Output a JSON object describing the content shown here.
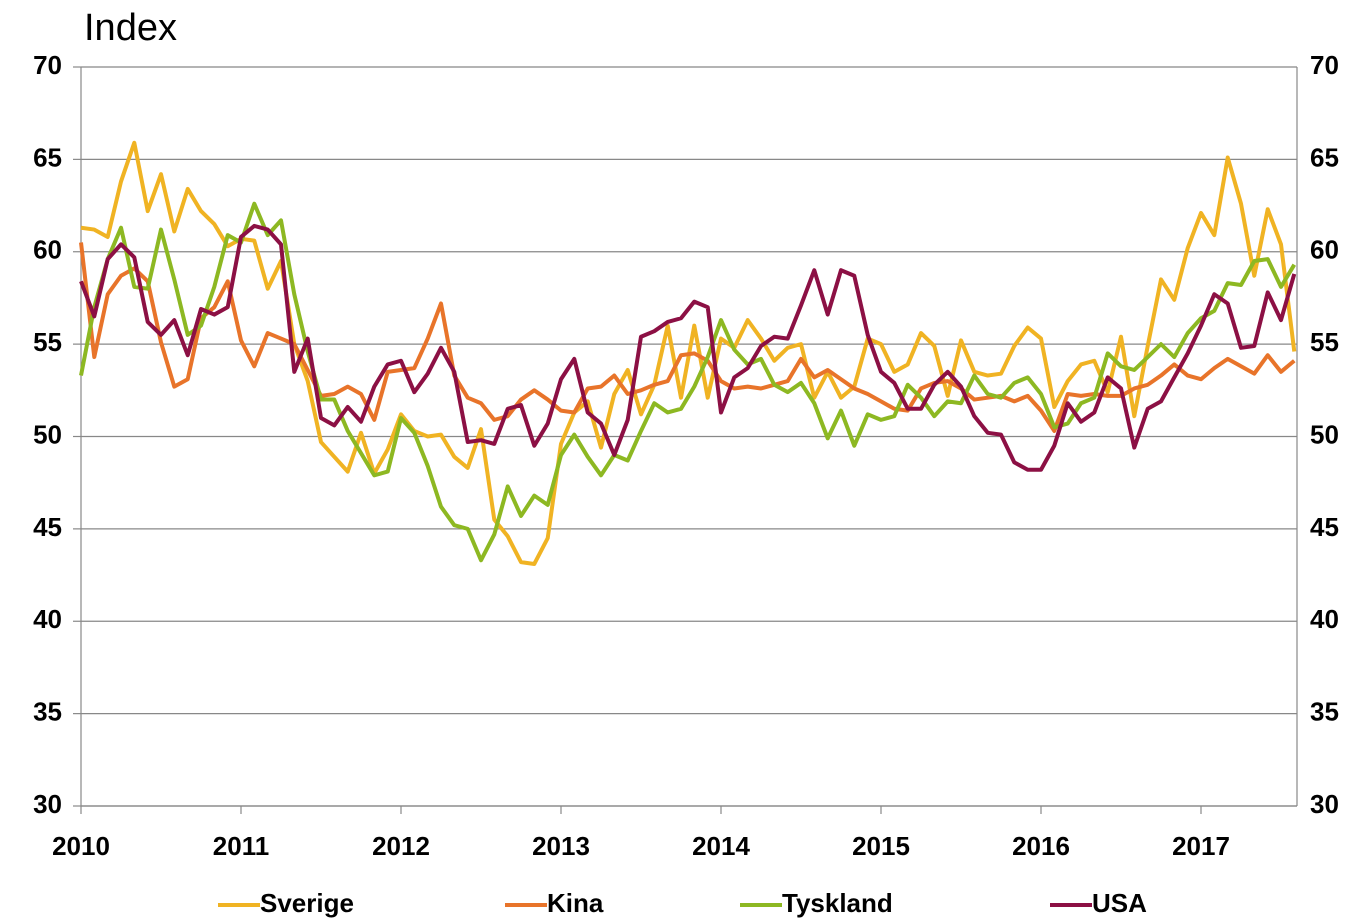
{
  "chart_data": {
    "type": "line",
    "title": "Index",
    "x": [
      2010,
      2010.083,
      2010.167,
      2010.25,
      2010.333,
      2010.417,
      2010.5,
      2010.583,
      2010.667,
      2010.75,
      2010.833,
      2010.917,
      2011,
      2011.083,
      2011.167,
      2011.25,
      2011.333,
      2011.417,
      2011.5,
      2011.583,
      2011.667,
      2011.75,
      2011.833,
      2011.917,
      2012,
      2012.083,
      2012.167,
      2012.25,
      2012.333,
      2012.417,
      2012.5,
      2012.583,
      2012.667,
      2012.75,
      2012.833,
      2012.917,
      2013,
      2013.083,
      2013.167,
      2013.25,
      2013.333,
      2013.417,
      2013.5,
      2013.583,
      2013.667,
      2013.75,
      2013.833,
      2013.917,
      2014,
      2014.083,
      2014.167,
      2014.25,
      2014.333,
      2014.417,
      2014.5,
      2014.583,
      2014.667,
      2014.75,
      2014.833,
      2014.917,
      2015,
      2015.083,
      2015.167,
      2015.25,
      2015.333,
      2015.417,
      2015.5,
      2015.583,
      2015.667,
      2015.75,
      2015.833,
      2015.917,
      2016,
      2016.083,
      2016.167,
      2016.25,
      2016.333,
      2016.417,
      2016.5,
      2016.583,
      2016.667,
      2016.75,
      2016.833,
      2016.917,
      2017,
      2017.083,
      2017.167,
      2017.25,
      2017.333,
      2017.417,
      2017.5,
      2017.583
    ],
    "series": [
      {
        "name": "Sverige",
        "color": "#f0b323",
        "values": [
          61.3,
          61.2,
          60.8,
          63.8,
          65.9,
          62.2,
          64.2,
          61.1,
          63.4,
          62.2,
          61.5,
          60.3,
          60.7,
          60.6,
          58,
          59.5,
          55,
          53,
          49.7,
          48.9,
          48.1,
          50.2,
          48,
          49.3,
          51.2,
          50.3,
          50,
          50.1,
          48.9,
          48.3,
          50.4,
          45.5,
          44.6,
          43.2,
          43.1,
          44.5,
          49.6,
          51.3,
          51.9,
          49.4,
          52.3,
          53.6,
          51.2,
          52.8,
          56,
          52.1,
          56,
          52.1,
          55.3,
          54.8,
          56.3,
          55.3,
          54.1,
          54.8,
          55,
          52.1,
          53.5,
          52.1,
          52.7,
          55.3,
          55,
          53.5,
          53.9,
          55.6,
          54.9,
          52.2,
          55.2,
          53.5,
          53.3,
          53.4,
          54.9,
          55.9,
          55.3,
          51.6,
          53,
          53.9,
          54.1,
          52.4,
          55.4,
          51.1,
          54.9,
          58.5,
          57.4,
          60.2,
          62.1,
          60.9,
          65.1,
          62.6,
          58.7,
          62.3,
          60.4,
          54.6
        ]
      },
      {
        "name": "Kina",
        "color": "#e8742a",
        "values": [
          60.5,
          54.3,
          57.7,
          58.7,
          59.1,
          58.4,
          55.1,
          52.7,
          53.1,
          56.4,
          57,
          58.4,
          55.2,
          53.8,
          55.6,
          55.3,
          55,
          53.6,
          52.2,
          52.3,
          52.7,
          52.3,
          50.9,
          53.5,
          53.6,
          53.7,
          55.3,
          57.2,
          53.3,
          52.1,
          51.8,
          50.9,
          51.1,
          52,
          52.5,
          52,
          51.4,
          51.3,
          52.6,
          52.7,
          53.3,
          52.3,
          52.5,
          52.8,
          53,
          54.4,
          54.5,
          54.1,
          53,
          52.6,
          52.7,
          52.6,
          52.8,
          53,
          54.2,
          53.2,
          53.6,
          53.1,
          52.6,
          52.3,
          51.9,
          51.5,
          51.4,
          52.6,
          52.9,
          53,
          52.6,
          52,
          52.1,
          52.2,
          51.9,
          52.2,
          51.4,
          50.3,
          52.3,
          52.2,
          52.3,
          52.2,
          52.2,
          52.6,
          52.8,
          53.3,
          53.9,
          53.3,
          53.1,
          53.7,
          54.2,
          53.8,
          53.4,
          54.4,
          53.5,
          54.1
        ]
      },
      {
        "name": "Tyskland",
        "color": "#8db822",
        "values": [
          53.3,
          57,
          59.6,
          61.3,
          58.1,
          58,
          61.2,
          58.5,
          55.5,
          56,
          58.1,
          60.9,
          60.5,
          62.6,
          60.9,
          61.7,
          57.7,
          54.6,
          52,
          52,
          50.3,
          49.1,
          47.9,
          48.1,
          51,
          50.2,
          48.4,
          46.2,
          45.2,
          45,
          43.3,
          44.7,
          47.3,
          45.7,
          46.8,
          46.3,
          49,
          50.1,
          48.9,
          47.9,
          49,
          48.7,
          50.3,
          51.8,
          51.3,
          51.5,
          52.7,
          54.3,
          56.3,
          54.7,
          53.9,
          54.2,
          52.8,
          52.4,
          52.9,
          51.8,
          49.9,
          51.4,
          49.5,
          51.2,
          50.9,
          51.1,
          52.8,
          52.1,
          51.1,
          51.9,
          51.8,
          53.3,
          52.3,
          52.1,
          52.9,
          53.2,
          52.3,
          50.5,
          50.7,
          51.8,
          52.1,
          54.5,
          53.8,
          53.6,
          54.3,
          55,
          54.3,
          55.6,
          56.4,
          56.8,
          58.3,
          58.2,
          59.5,
          59.6,
          58.1,
          59.3
        ]
      },
      {
        "name": "USA",
        "color": "#8c1044",
        "values": [
          58.4,
          56.5,
          59.6,
          60.4,
          59.7,
          56.2,
          55.5,
          56.3,
          54.4,
          56.9,
          56.6,
          57,
          60.8,
          61.4,
          61.2,
          60.4,
          53.5,
          55.3,
          51,
          50.6,
          51.6,
          50.8,
          52.7,
          53.9,
          54.1,
          52.4,
          53.4,
          54.8,
          53.5,
          49.7,
          49.8,
          49.6,
          51.5,
          51.7,
          49.5,
          50.7,
          53.1,
          54.2,
          51.3,
          50.7,
          49,
          50.9,
          55.4,
          55.7,
          56.2,
          56.4,
          57.3,
          57,
          51.3,
          53.2,
          53.7,
          54.9,
          55.4,
          55.3,
          57.1,
          59,
          56.6,
          59,
          58.7,
          55.5,
          53.5,
          52.9,
          51.5,
          51.5,
          52.8,
          53.5,
          52.7,
          51.1,
          50.2,
          50.1,
          48.6,
          48.2,
          48.2,
          49.5,
          51.8,
          50.8,
          51.3,
          53.2,
          52.6,
          49.4,
          51.5,
          51.9,
          53.2,
          54.5,
          56,
          57.7,
          57.2,
          54.8,
          54.9,
          57.8,
          56.3,
          58.8
        ]
      }
    ],
    "xlim": [
      2010,
      2017.6
    ],
    "xticks": [
      2010,
      2011,
      2012,
      2013,
      2014,
      2015,
      2016,
      2017
    ],
    "ylim": [
      30,
      70
    ],
    "yticks": [
      30,
      35,
      40,
      45,
      50,
      55,
      60,
      65,
      70
    ],
    "grid": true,
    "legend": "bottom"
  }
}
